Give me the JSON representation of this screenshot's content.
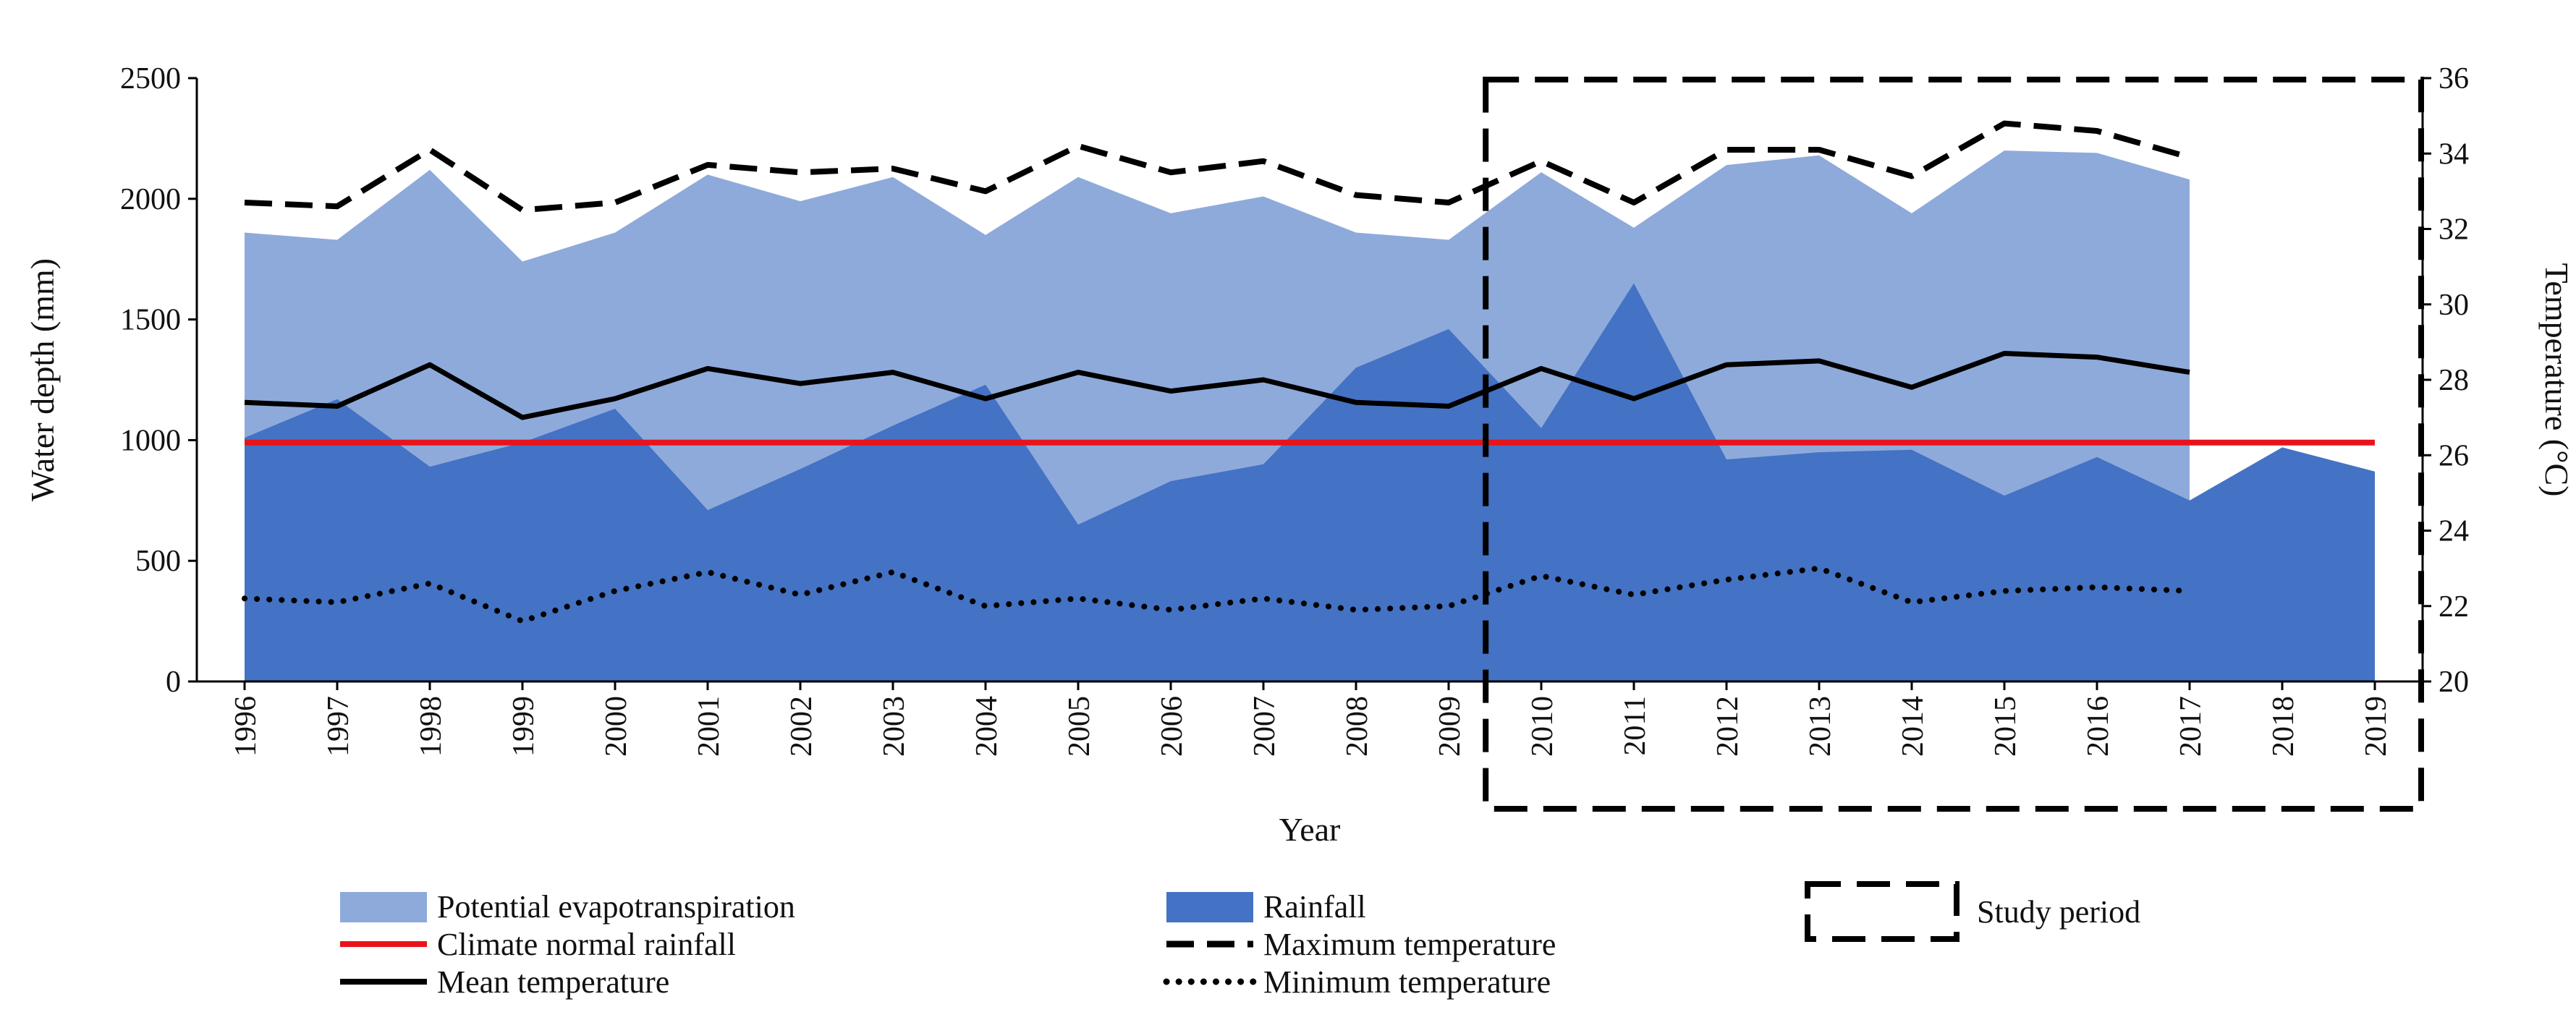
{
  "chart_data": {
    "type": "area",
    "xlabel": "Year",
    "ylabel_left": "Water depth (mm)",
    "ylabel_right": "Temperature (°C)",
    "ylim_left": [
      0,
      2500
    ],
    "ylim_right": [
      20,
      36
    ],
    "left_ticks": [
      "0",
      "500",
      "1000",
      "1500",
      "2000",
      "2500"
    ],
    "right_ticks": [
      "20",
      "22",
      "24",
      "26",
      "28",
      "30",
      "32",
      "34",
      "36"
    ],
    "categories": [
      "1996",
      "1997",
      "1998",
      "1999",
      "2000",
      "2001",
      "2002",
      "2003",
      "2004",
      "2005",
      "2006",
      "2007",
      "2008",
      "2009",
      "2010",
      "2011",
      "2012",
      "2013",
      "2014",
      "2015",
      "2016",
      "2017",
      "2018",
      "2019"
    ],
    "series": [
      {
        "key": "pet",
        "name": "Potential evapotranspiration",
        "kind": "area",
        "axis": "left",
        "color": "#8eaadb",
        "values": [
          1860,
          1830,
          2120,
          1740,
          1860,
          2100,
          1990,
          2090,
          1850,
          2090,
          1940,
          2010,
          1860,
          1830,
          2110,
          1880,
          2140,
          2180,
          1940,
          2200,
          2190,
          2080,
          null,
          null
        ]
      },
      {
        "key": "rainfall",
        "name": "Rainfall",
        "kind": "area",
        "axis": "left",
        "color": "#4472c4",
        "values": [
          1010,
          1170,
          890,
          990,
          1130,
          710,
          880,
          1060,
          1230,
          650,
          830,
          900,
          1300,
          1460,
          1050,
          1650,
          920,
          950,
          960,
          770,
          930,
          750,
          970,
          870
        ]
      },
      {
        "key": "normal",
        "name": "Climate normal rainfall",
        "kind": "line",
        "axis": "left",
        "color": "#e8141c",
        "constant": 990
      },
      {
        "key": "tmax",
        "name": "Maximum temperature",
        "kind": "line",
        "axis": "right",
        "color": "#000000",
        "dash": "long",
        "values": [
          32.7,
          32.6,
          34.1,
          32.5,
          32.7,
          33.7,
          33.5,
          33.6,
          33.0,
          34.2,
          33.5,
          33.8,
          32.9,
          32.7,
          33.8,
          32.7,
          34.1,
          34.1,
          33.4,
          34.8,
          34.6,
          33.9,
          null,
          null
        ]
      },
      {
        "key": "tmean",
        "name": "Mean temperature",
        "kind": "line",
        "axis": "right",
        "color": "#000000",
        "dash": "solid",
        "values": [
          27.4,
          27.3,
          28.4,
          27.0,
          27.5,
          28.3,
          27.9,
          28.2,
          27.5,
          28.2,
          27.7,
          28.0,
          27.4,
          27.3,
          28.3,
          27.5,
          28.4,
          28.5,
          27.8,
          28.7,
          28.6,
          28.2,
          null,
          null
        ]
      },
      {
        "key": "tmin",
        "name": "Minimum temperature",
        "kind": "line",
        "axis": "right",
        "color": "#000000",
        "dash": "dotted",
        "values": [
          22.2,
          22.1,
          22.6,
          21.6,
          22.4,
          22.9,
          22.3,
          22.9,
          22.0,
          22.2,
          21.9,
          22.2,
          21.9,
          22.0,
          22.8,
          22.3,
          22.7,
          23.0,
          22.1,
          22.4,
          22.5,
          22.4,
          null,
          null
        ]
      }
    ],
    "study_period": {
      "label": "Study period",
      "from": "2010",
      "to": "2019"
    }
  }
}
